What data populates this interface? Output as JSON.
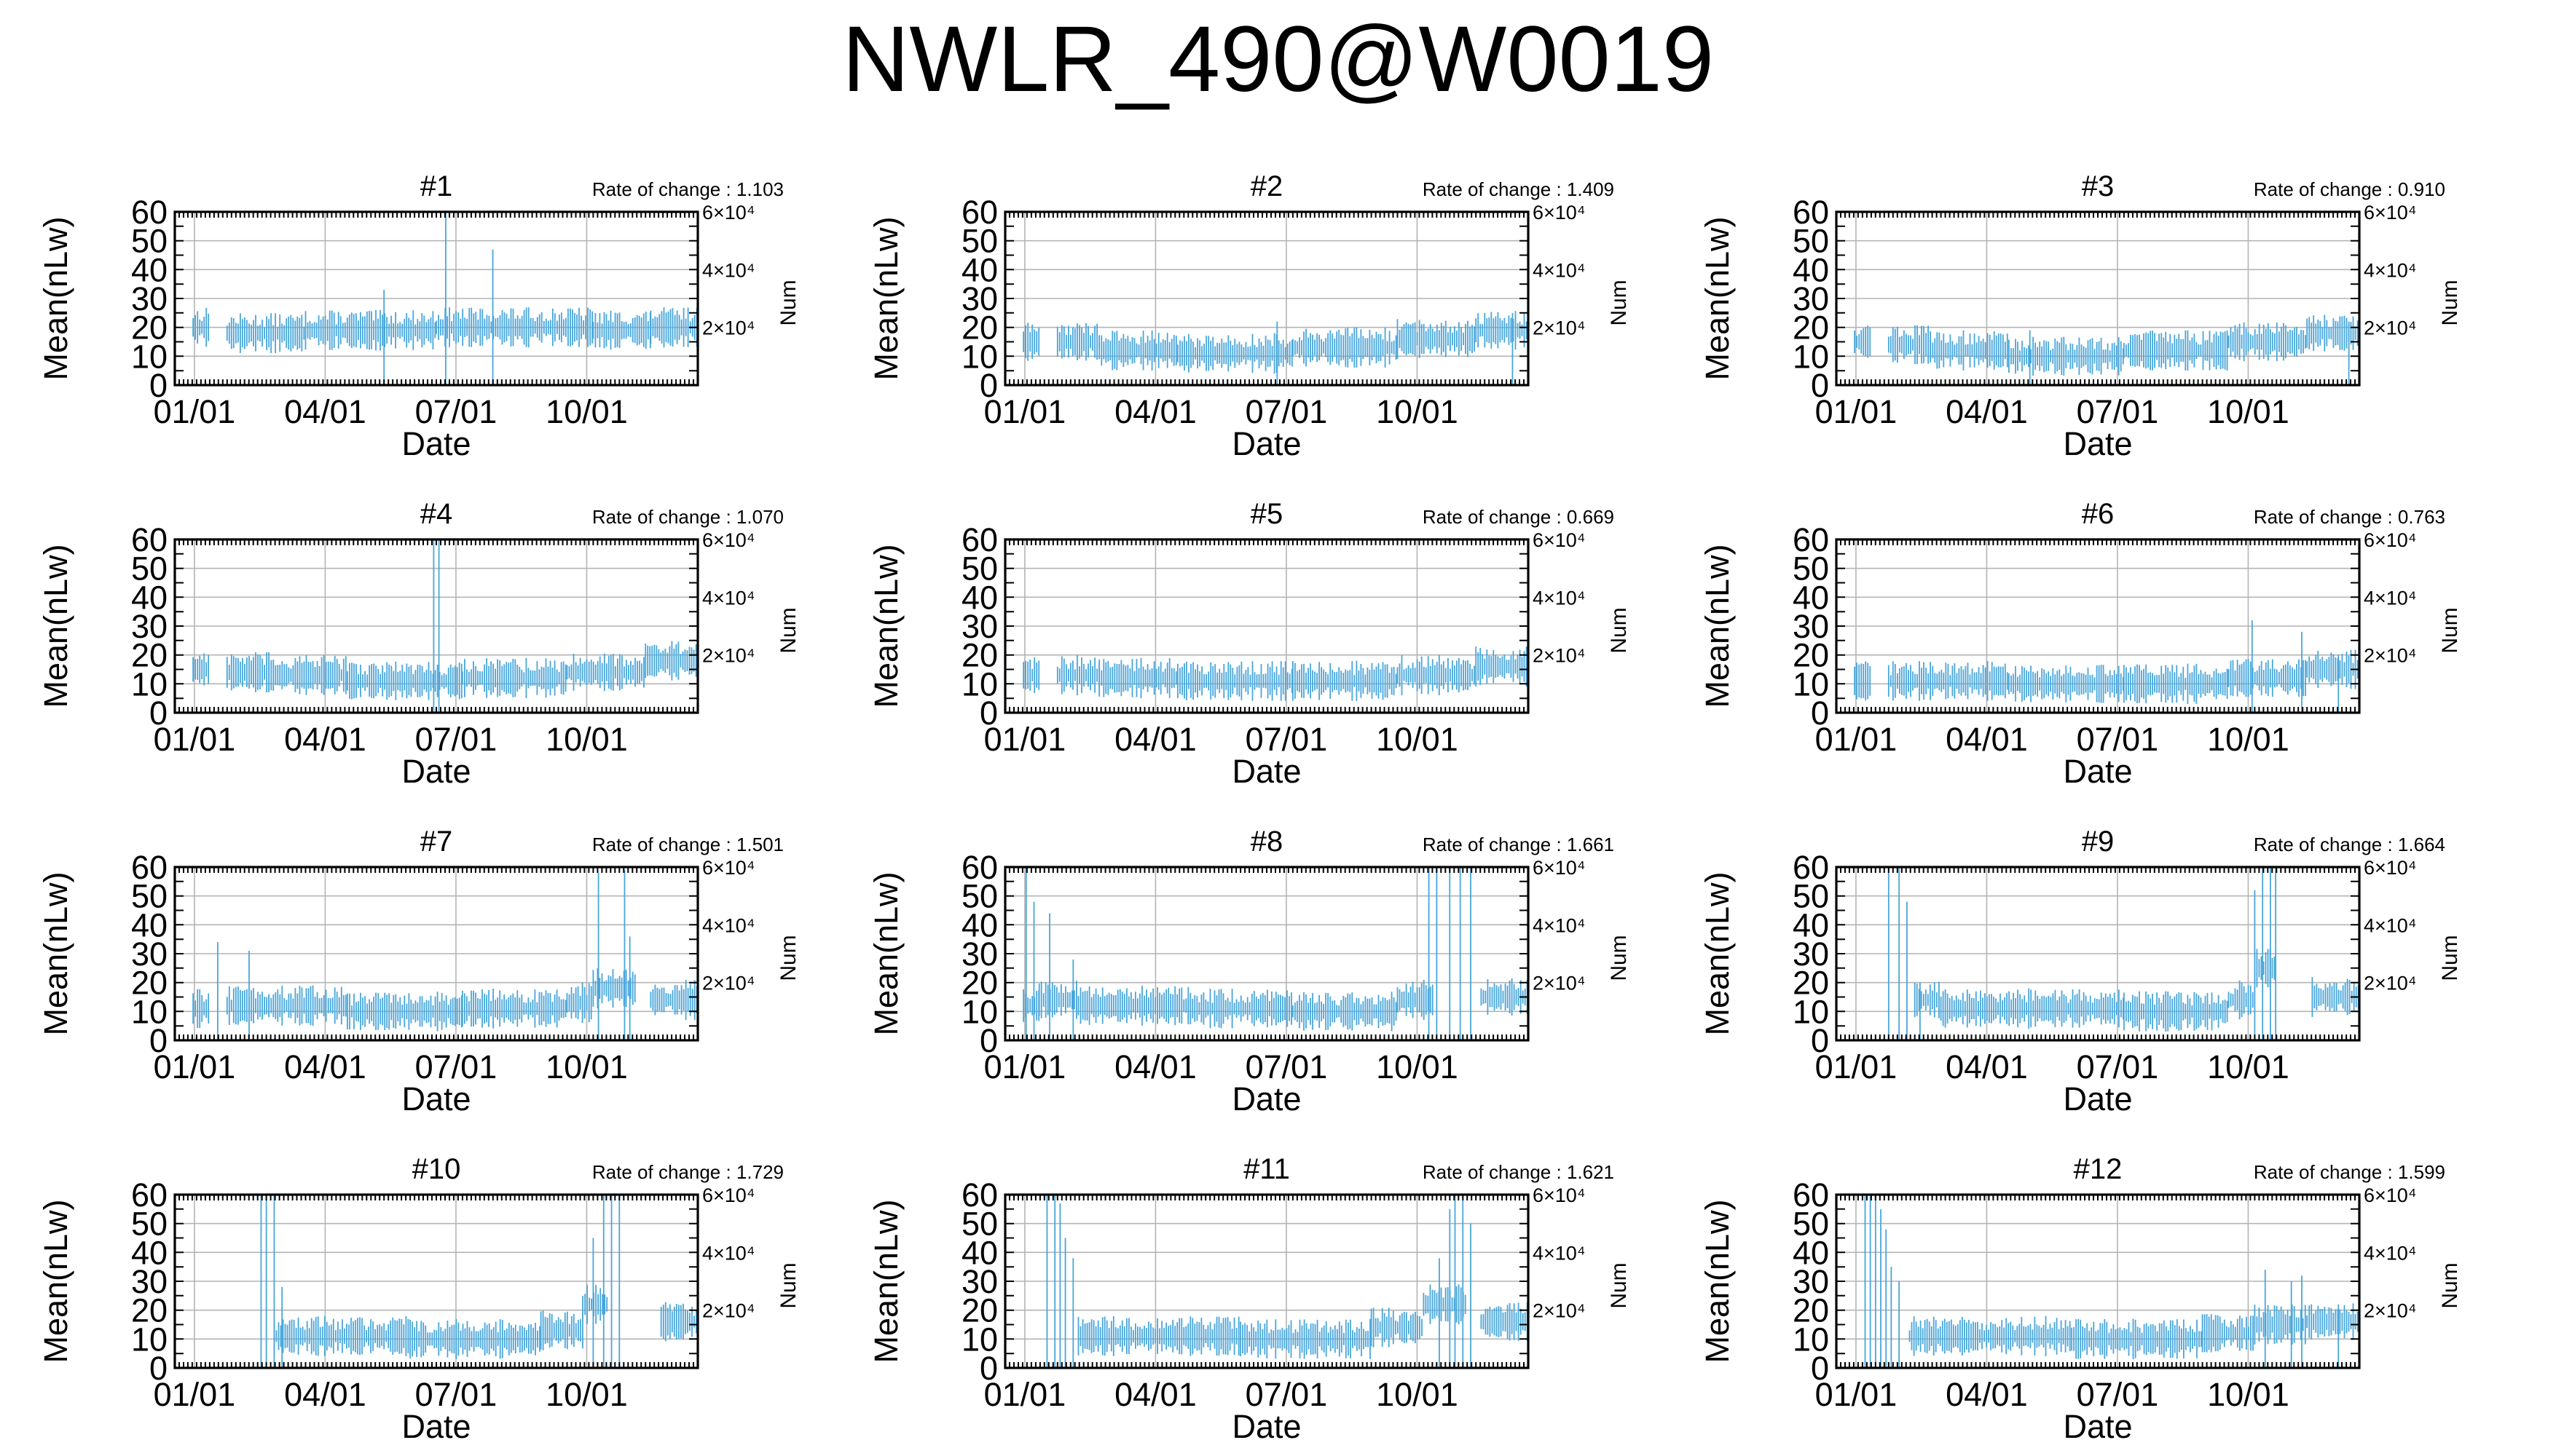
{
  "title": "NWLR_490@W0019",
  "colors": {
    "series": "#48A6DB",
    "grid": "#b4b4b4",
    "axis": "#000000"
  },
  "chart_data": [
    {
      "type": "line",
      "title": "#1",
      "annotation": "Rate of change : 1.103",
      "xlabel": "Date",
      "ylabel": "Mean(nLw)",
      "y2label": "Num",
      "ylim": [
        0,
        60
      ],
      "y2ticks": [
        "6×10⁴",
        "4×10⁴",
        "2×10⁴"
      ],
      "xticks": [
        "01/01",
        "04/01",
        "07/01",
        "10/01"
      ],
      "grid": true,
      "series": [
        {
          "values": [
            [
              0.035,
              0.065,
              20
            ],
            [
              0.1,
              0.25,
              18
            ],
            [
              0.25,
              0.5,
              19
            ],
            [
              0.5,
              0.8,
              20
            ],
            [
              0.8,
              0.91,
              19
            ],
            [
              0.91,
              1.0,
              20
            ]
          ],
          "spikes": [
            [
              0.518,
              60
            ],
            [
              0.608,
              47
            ],
            [
              0.4,
              33
            ]
          ]
        }
      ]
    },
    {
      "type": "line",
      "title": "#2",
      "annotation": "Rate of change : 1.409",
      "xlabel": "Date",
      "ylabel": "Mean(nLw)",
      "y2label": "Num",
      "ylim": [
        0,
        60
      ],
      "y2ticks": [
        "6×10⁴",
        "4×10⁴",
        "2×10⁴"
      ],
      "xticks": [
        "01/01",
        "04/01",
        "07/01",
        "10/01"
      ],
      "grid": true,
      "series": [
        {
          "values": [
            [
              0.035,
              0.065,
              15
            ],
            [
              0.1,
              0.18,
              15
            ],
            [
              0.18,
              0.33,
              12
            ],
            [
              0.33,
              0.55,
              11
            ],
            [
              0.55,
              0.75,
              13
            ],
            [
              0.75,
              0.9,
              16
            ],
            [
              0.9,
              1.0,
              19
            ]
          ],
          "spikes": [
            [
              0.52,
              22
            ],
            [
              0.97,
              25
            ]
          ]
        }
      ]
    },
    {
      "type": "line",
      "title": "#3",
      "annotation": "Rate of change : 0.910",
      "xlabel": "Date",
      "ylabel": "Mean(nLw)",
      "y2label": "Num",
      "ylim": [
        0,
        60
      ],
      "y2ticks": [
        "6×10⁴",
        "4×10⁴",
        "2×10⁴"
      ],
      "xticks": [
        "01/01",
        "04/01",
        "07/01",
        "10/01"
      ],
      "grid": true,
      "series": [
        {
          "values": [
            [
              0.035,
              0.065,
              15
            ],
            [
              0.1,
              0.18,
              14
            ],
            [
              0.18,
              0.33,
              12
            ],
            [
              0.33,
              0.55,
              10
            ],
            [
              0.55,
              0.75,
              12
            ],
            [
              0.75,
              0.9,
              15
            ],
            [
              0.9,
              1.0,
              18
            ]
          ],
          "spikes": [
            [
              0.37,
              19
            ],
            [
              0.98,
              22
            ]
          ]
        }
      ]
    },
    {
      "type": "line",
      "title": "#4",
      "annotation": "Rate of change : 1.070",
      "xlabel": "Date",
      "ylabel": "Mean(nLw)",
      "y2label": "Num",
      "ylim": [
        0,
        60
      ],
      "y2ticks": [
        "6×10⁴",
        "4×10⁴",
        "2×10⁴"
      ],
      "xticks": [
        "01/01",
        "04/01",
        "07/01",
        "10/01"
      ],
      "grid": true,
      "series": [
        {
          "values": [
            [
              0.035,
              0.065,
              15
            ],
            [
              0.1,
              0.18,
              14
            ],
            [
              0.18,
              0.33,
              13
            ],
            [
              0.33,
              0.55,
              11
            ],
            [
              0.55,
              0.75,
              12
            ],
            [
              0.75,
              0.9,
              14
            ],
            [
              0.9,
              1.0,
              18
            ]
          ],
          "spikes": [
            [
              0.495,
              60
            ],
            [
              0.505,
              60
            ]
          ]
        }
      ]
    },
    {
      "type": "line",
      "title": "#5",
      "annotation": "Rate of change : 0.669",
      "xlabel": "Date",
      "ylabel": "Mean(nLw)",
      "y2label": "Num",
      "ylim": [
        0,
        60
      ],
      "y2ticks": [
        "6×10⁴",
        "4×10⁴",
        "2×10⁴"
      ],
      "xticks": [
        "01/01",
        "04/01",
        "07/01",
        "10/01"
      ],
      "grid": true,
      "series": [
        {
          "values": [
            [
              0.035,
              0.065,
              13
            ],
            [
              0.1,
              0.18,
              13
            ],
            [
              0.18,
              0.33,
              12
            ],
            [
              0.33,
              0.55,
              11
            ],
            [
              0.55,
              0.75,
              11
            ],
            [
              0.75,
              0.9,
              13
            ],
            [
              0.9,
              1.0,
              16
            ]
          ],
          "spikes": []
        }
      ]
    },
    {
      "type": "line",
      "title": "#6",
      "annotation": "Rate of change : 0.763",
      "xlabel": "Date",
      "ylabel": "Mean(nLw)",
      "y2label": "Num",
      "ylim": [
        0,
        60
      ],
      "y2ticks": [
        "6×10⁴",
        "4×10⁴",
        "2×10⁴"
      ],
      "xticks": [
        "01/01",
        "04/01",
        "07/01",
        "10/01"
      ],
      "grid": true,
      "series": [
        {
          "values": [
            [
              0.035,
              0.065,
              11
            ],
            [
              0.1,
              0.18,
              11
            ],
            [
              0.18,
              0.33,
              11
            ],
            [
              0.33,
              0.55,
              10
            ],
            [
              0.55,
              0.75,
              10
            ],
            [
              0.75,
              0.9,
              12
            ],
            [
              0.9,
              1.0,
              15
            ]
          ],
          "spikes": [
            [
              0.795,
              32
            ],
            [
              0.89,
              28
            ],
            [
              0.96,
              20
            ]
          ]
        }
      ]
    },
    {
      "type": "line",
      "title": "#7",
      "annotation": "Rate of change : 1.501",
      "xlabel": "Date",
      "ylabel": "Mean(nLw)",
      "y2label": "Num",
      "ylim": [
        0,
        60
      ],
      "y2ticks": [
        "6×10⁴",
        "4×10⁴",
        "2×10⁴"
      ],
      "xticks": [
        "01/01",
        "04/01",
        "07/01",
        "10/01"
      ],
      "grid": true,
      "series": [
        {
          "values": [
            [
              0.035,
              0.065,
              11
            ],
            [
              0.1,
              0.18,
              12
            ],
            [
              0.18,
              0.33,
              12
            ],
            [
              0.33,
              0.55,
              10
            ],
            [
              0.55,
              0.75,
              11
            ],
            [
              0.75,
              0.8,
              13
            ],
            [
              0.8,
              0.88,
              18
            ],
            [
              0.91,
              1.0,
              14
            ]
          ],
          "spikes": [
            [
              0.082,
              34
            ],
            [
              0.142,
              31
            ],
            [
              0.81,
              58
            ],
            [
              0.86,
              59
            ],
            [
              0.87,
              36
            ]
          ]
        }
      ]
    },
    {
      "type": "line",
      "title": "#8",
      "annotation": "Rate of change : 1.661",
      "xlabel": "Date",
      "ylabel": "Mean(nLw)",
      "y2label": "Num",
      "ylim": [
        0,
        60
      ],
      "y2ticks": [
        "6×10⁴",
        "4×10⁴",
        "2×10⁴"
      ],
      "xticks": [
        "01/01",
        "04/01",
        "07/01",
        "10/01"
      ],
      "grid": true,
      "series": [
        {
          "values": [
            [
              0.035,
              0.065,
              12
            ],
            [
              0.065,
              0.14,
              14
            ],
            [
              0.14,
              0.35,
              12
            ],
            [
              0.35,
              0.55,
              11
            ],
            [
              0.55,
              0.75,
              10
            ],
            [
              0.75,
              0.82,
              14
            ],
            [
              0.91,
              1.0,
              15
            ]
          ],
          "spikes": [
            [
              0.04,
              60
            ],
            [
              0.055,
              48
            ],
            [
              0.085,
              44
            ],
            [
              0.13,
              28
            ],
            [
              0.81,
              60
            ],
            [
              0.825,
              60
            ],
            [
              0.85,
              60
            ],
            [
              0.87,
              60
            ],
            [
              0.89,
              60
            ]
          ]
        }
      ]
    },
    {
      "type": "line",
      "title": "#9",
      "annotation": "Rate of change : 1.664",
      "xlabel": "Date",
      "ylabel": "Mean(nLw)",
      "y2label": "Num",
      "ylim": [
        0,
        60
      ],
      "y2ticks": [
        "6×10⁴",
        "4×10⁴",
        "2×10⁴"
      ],
      "xticks": [
        "01/01",
        "04/01",
        "07/01",
        "10/01"
      ],
      "grid": true,
      "series": [
        {
          "values": [
            [
              0.15,
              0.2,
              14
            ],
            [
              0.2,
              0.55,
              11
            ],
            [
              0.55,
              0.75,
              10
            ],
            [
              0.75,
              0.8,
              14
            ],
            [
              0.8,
              0.84,
              25
            ],
            [
              0.91,
              1.0,
              15
            ]
          ],
          "spikes": [
            [
              0.1,
              60
            ],
            [
              0.12,
              60
            ],
            [
              0.135,
              48
            ],
            [
              0.16,
              20
            ],
            [
              0.8,
              52
            ],
            [
              0.815,
              60
            ],
            [
              0.83,
              60
            ],
            [
              0.84,
              60
            ]
          ]
        }
      ]
    },
    {
      "type": "line",
      "title": "#10",
      "annotation": "Rate of change : 1.729",
      "xlabel": "Date",
      "ylabel": "Mean(nLw)",
      "y2label": "Num",
      "ylim": [
        0,
        60
      ],
      "y2ticks": [
        "6×10⁴",
        "4×10⁴",
        "2×10⁴"
      ],
      "xticks": [
        "01/01",
        "04/01",
        "07/01",
        "10/01"
      ],
      "grid": true,
      "series": [
        {
          "values": [
            [
              0.19,
              0.45,
              11
            ],
            [
              0.45,
              0.7,
              10
            ],
            [
              0.7,
              0.78,
              13
            ],
            [
              0.78,
              0.83,
              22
            ],
            [
              0.93,
              1.0,
              16
            ]
          ],
          "spikes": [
            [
              0.165,
              60
            ],
            [
              0.175,
              58
            ],
            [
              0.19,
              60
            ],
            [
              0.205,
              28
            ],
            [
              0.8,
              45
            ],
            [
              0.82,
              60
            ],
            [
              0.835,
              60
            ],
            [
              0.85,
              60
            ]
          ]
        }
      ]
    },
    {
      "type": "line",
      "title": "#11",
      "annotation": "Rate of change : 1.621",
      "xlabel": "Date",
      "ylabel": "Mean(nLw)",
      "y2label": "Num",
      "ylim": [
        0,
        60
      ],
      "y2ticks": [
        "6×10⁴",
        "4×10⁴",
        "2×10⁴"
      ],
      "xticks": [
        "01/01",
        "04/01",
        "07/01",
        "10/01"
      ],
      "grid": true,
      "series": [
        {
          "values": [
            [
              0.14,
              0.45,
              11
            ],
            [
              0.45,
              0.7,
              10
            ],
            [
              0.7,
              0.8,
              14
            ],
            [
              0.8,
              0.88,
              22
            ],
            [
              0.91,
              1.0,
              16
            ]
          ],
          "spikes": [
            [
              0.08,
              60
            ],
            [
              0.095,
              60
            ],
            [
              0.105,
              57
            ],
            [
              0.115,
              45
            ],
            [
              0.13,
              38
            ],
            [
              0.83,
              38
            ],
            [
              0.85,
              55
            ],
            [
              0.86,
              60
            ],
            [
              0.875,
              60
            ],
            [
              0.89,
              50
            ]
          ]
        }
      ]
    },
    {
      "type": "line",
      "title": "#12",
      "annotation": "Rate of change : 1.599",
      "xlabel": "Date",
      "ylabel": "Mean(nLw)",
      "y2label": "Num",
      "ylim": [
        0,
        60
      ],
      "y2ticks": [
        "6×10⁴",
        "4×10⁴",
        "2×10⁴"
      ],
      "xticks": [
        "01/01",
        "04/01",
        "07/01",
        "10/01"
      ],
      "grid": true,
      "series": [
        {
          "values": [
            [
              0.14,
              0.45,
              11
            ],
            [
              0.45,
              0.7,
              10
            ],
            [
              0.7,
              0.8,
              12
            ],
            [
              0.8,
              0.9,
              15
            ],
            [
              0.9,
              1.0,
              16
            ]
          ],
          "spikes": [
            [
              0.055,
              60
            ],
            [
              0.065,
              60
            ],
            [
              0.075,
              60
            ],
            [
              0.085,
              55
            ],
            [
              0.095,
              48
            ],
            [
              0.105,
              35
            ],
            [
              0.12,
              30
            ],
            [
              0.82,
              34
            ],
            [
              0.87,
              30
            ],
            [
              0.89,
              32
            ],
            [
              0.96,
              22
            ]
          ]
        }
      ]
    }
  ]
}
